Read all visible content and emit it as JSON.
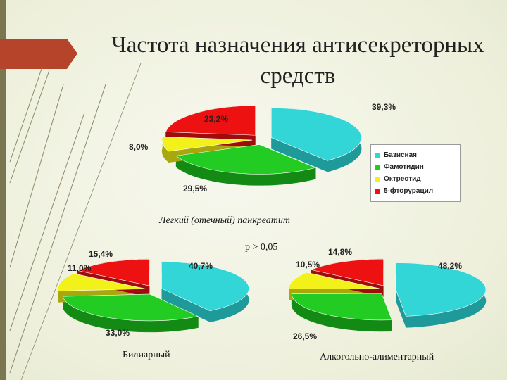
{
  "title": "Частота назначения антисекреторных средств",
  "chart_data": [
    {
      "type": "pie",
      "caption": "Легкий (отечный) панкреатит",
      "categories": [
        "Базисная",
        "Фамотидин",
        "Октреотид",
        "5-фторурацил"
      ],
      "values": [
        39.3,
        29.5,
        8.0,
        23.2
      ],
      "labels": [
        "39,3%",
        "29,5%",
        "8,0%",
        "23,2%"
      ]
    },
    {
      "type": "pie",
      "caption": "Билиарный",
      "categories": [
        "Базисная",
        "Фамотидин",
        "Октреотид",
        "5-фторурацил"
      ],
      "values": [
        40.7,
        33.0,
        11.0,
        15.4
      ],
      "labels": [
        "40,7%",
        "33,0%",
        "11,0%",
        "15,4%"
      ]
    },
    {
      "type": "pie",
      "caption": "Алкогольно-алиментарный",
      "categories": [
        "Базисная",
        "Фамотидин",
        "Октреотид",
        "5-фторурацил"
      ],
      "values": [
        48.2,
        26.5,
        10.5,
        14.8
      ],
      "labels": [
        "48,2%",
        "26,5%",
        "10,5%",
        "14,8%"
      ]
    }
  ],
  "legend": [
    {
      "label": "Базисная",
      "color": "#33d6d6"
    },
    {
      "label": "Фамотидин",
      "color": "#22cc22"
    },
    {
      "label": "Октреотид",
      "color": "#f2f21a"
    },
    {
      "label": "5-фторурацил",
      "color": "#ee1111"
    }
  ],
  "p_value": "p > 0,05"
}
